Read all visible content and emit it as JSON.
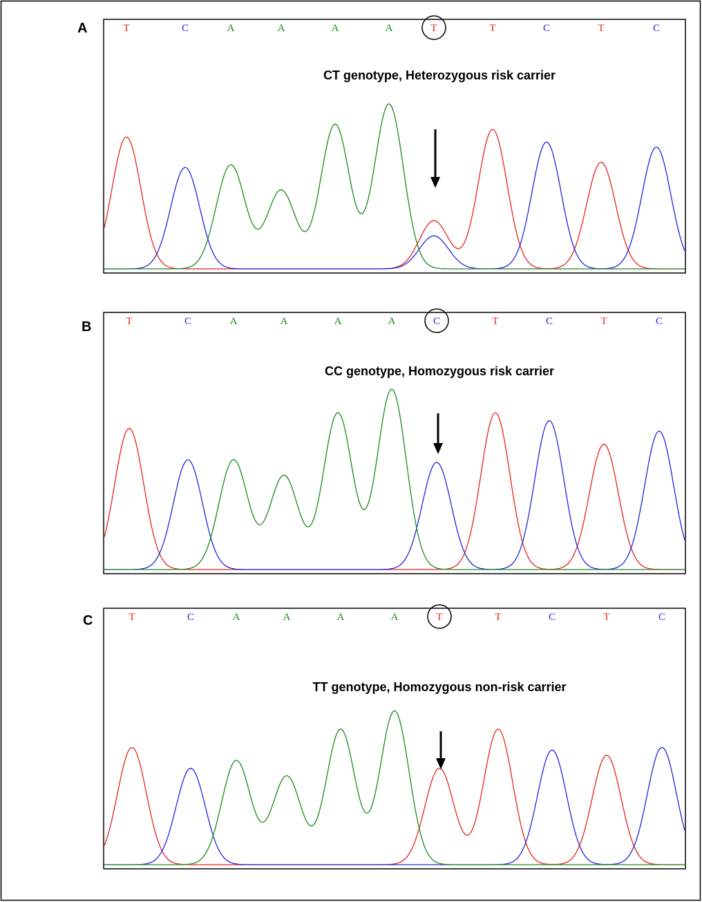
{
  "base_colors": {
    "T": "#e8221c",
    "C": "#1f24e0",
    "A": "#1a8a1a"
  },
  "panels": [
    {
      "label": "A",
      "annotation": "CT genotype, Heterozygous risk carrier",
      "bases": [
        "T",
        "C",
        "A",
        "A",
        "A",
        "A",
        "T",
        "T",
        "C",
        "T",
        "C"
      ],
      "traces": {
        "T": [
          0.52,
          null,
          null,
          null,
          null,
          null,
          0.19,
          0.55,
          null,
          0.42,
          null
        ],
        "C": [
          null,
          0.4,
          null,
          null,
          null,
          null,
          0.13,
          null,
          0.5,
          null,
          0.48
        ],
        "A": [
          null,
          null,
          0.41,
          0.31,
          0.57,
          0.65,
          null,
          null,
          null,
          null,
          null
        ]
      }
    },
    {
      "label": "B",
      "annotation": "CC genotype, Homozygous risk carrier",
      "bases": [
        "T",
        "C",
        "A",
        "A",
        "A",
        "A",
        "C",
        "T",
        "C",
        "T",
        "C"
      ],
      "traces": {
        "T": [
          0.54,
          null,
          null,
          null,
          null,
          null,
          null,
          0.6,
          null,
          0.48,
          null
        ],
        "C": [
          null,
          0.42,
          null,
          null,
          null,
          null,
          0.41,
          null,
          0.57,
          null,
          0.53
        ],
        "A": [
          null,
          null,
          0.42,
          0.36,
          0.6,
          0.69,
          null,
          null,
          null,
          null,
          null
        ]
      }
    },
    {
      "label": "C",
      "annotation": "TT genotype, Homozygous non-risk carrier",
      "bases": [
        "T",
        "C",
        "A",
        "A",
        "A",
        "A",
        "T",
        "T",
        "C",
        "T",
        "C"
      ],
      "traces": {
        "T": [
          0.45,
          null,
          null,
          null,
          null,
          null,
          0.37,
          0.52,
          null,
          0.42,
          null
        ],
        "C": [
          null,
          0.37,
          null,
          null,
          null,
          null,
          null,
          null,
          0.44,
          null,
          0.45
        ],
        "A": [
          null,
          null,
          0.4,
          0.34,
          0.52,
          0.59,
          null,
          null,
          null,
          null,
          null
        ]
      }
    }
  ]
}
